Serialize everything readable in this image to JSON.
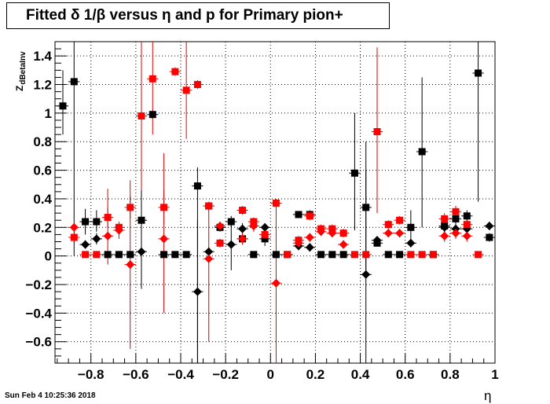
{
  "title": "Fitted δ 1/β versus η and p for Primary pion+",
  "timestamp": "Sun Feb  4 10:25:36 2018",
  "colors": {
    "black_series": "#000000",
    "red_series": "#ff0000",
    "red_error": "#e00000",
    "grid": "#000000"
  },
  "chart_data": {
    "type": "scatter",
    "xlabel": "η",
    "ylabel_main": "Z",
    "ylabel_sub": "dBetaInv",
    "xlim": [
      -0.96,
      1.0
    ],
    "ylim": [
      -0.75,
      1.5
    ],
    "xticks": [
      -0.8,
      -0.6,
      -0.4,
      -0.2,
      0,
      0.2,
      0.4,
      0.6,
      0.8,
      1
    ],
    "xtick_labels": [
      "−0.8",
      "−0.6",
      "−0.4",
      "−0.2",
      "0",
      "0.2",
      "0.4",
      "0.6",
      "0.8",
      "1"
    ],
    "yticks": [
      -0.6,
      -0.4,
      -0.2,
      0,
      0.2,
      0.4,
      0.6,
      0.8,
      1,
      1.2,
      1.4
    ],
    "ytick_labels": [
      "−0.6",
      "−0.4",
      "−0.2",
      "0",
      "0.2",
      "0.4",
      "0.6",
      "0.8",
      "1",
      "1.2",
      "1.4"
    ],
    "grid": true,
    "series": [
      {
        "marker": "square",
        "color": "#000000",
        "points": [
          {
            "x": -0.925,
            "y": 1.05,
            "lo": 0.85,
            "hi": 1.3
          },
          {
            "x": -0.875,
            "y": 1.22,
            "lo": 0.0,
            "hi": 1.5
          },
          {
            "x": -0.825,
            "y": 0.24,
            "lo": 0.15,
            "hi": 0.33
          },
          {
            "x": -0.775,
            "y": 0.24,
            "lo": 0.17,
            "hi": 0.32
          },
          {
            "x": -0.725,
            "y": 0.01,
            "lo": -0.01,
            "hi": 0.03
          },
          {
            "x": -0.675,
            "y": 0.01,
            "lo": -0.01,
            "hi": 0.03
          },
          {
            "x": -0.625,
            "y": 0.01,
            "lo": -0.01,
            "hi": 0.03
          },
          {
            "x": -0.575,
            "y": 0.25,
            "lo": 0.0,
            "hi": 0.5
          },
          {
            "x": -0.525,
            "y": 0.99,
            "lo": 0.96,
            "hi": 1.02
          },
          {
            "x": -0.475,
            "y": 0.01,
            "lo": -0.01,
            "hi": 0.03
          },
          {
            "x": -0.425,
            "y": 0.01,
            "lo": -0.01,
            "hi": 0.03
          },
          {
            "x": -0.375,
            "y": 0.01,
            "lo": -0.01,
            "hi": 0.03
          },
          {
            "x": -0.325,
            "y": 0.49,
            "lo": -0.75,
            "hi": 0.62
          },
          {
            "x": -0.275,
            "y": 0.35,
            "lo": 0.33,
            "hi": 0.37
          },
          {
            "x": -0.225,
            "y": 0.2,
            "lo": 0.17,
            "hi": 0.23
          },
          {
            "x": -0.175,
            "y": 0.24,
            "lo": 0.2,
            "hi": 0.28
          },
          {
            "x": -0.125,
            "y": 0.12,
            "lo": 0.08,
            "hi": 0.16
          },
          {
            "x": -0.075,
            "y": 0.01,
            "lo": -0.01,
            "hi": 0.03
          },
          {
            "x": -0.025,
            "y": 0.12,
            "lo": 0.07,
            "hi": 0.17
          },
          {
            "x": 0.025,
            "y": 0.01,
            "lo": -0.01,
            "hi": 0.03
          },
          {
            "x": 0.075,
            "y": 0.01,
            "lo": -0.01,
            "hi": 0.03
          },
          {
            "x": 0.125,
            "y": 0.29,
            "lo": 0.27,
            "hi": 0.31
          },
          {
            "x": 0.175,
            "y": 0.29,
            "lo": 0.26,
            "hi": 0.32
          },
          {
            "x": 0.225,
            "y": 0.01,
            "lo": -0.01,
            "hi": 0.03
          },
          {
            "x": 0.275,
            "y": 0.01,
            "lo": -0.01,
            "hi": 0.03
          },
          {
            "x": 0.325,
            "y": 0.01,
            "lo": -0.01,
            "hi": 0.03
          },
          {
            "x": 0.375,
            "y": 0.58,
            "lo": 0.18,
            "hi": 1.0
          },
          {
            "x": 0.425,
            "y": 0.34,
            "lo": -0.1,
            "hi": 0.8
          },
          {
            "x": 0.475,
            "y": 0.09,
            "lo": 0.07,
            "hi": 0.11
          },
          {
            "x": 0.525,
            "y": 0.01,
            "lo": -0.01,
            "hi": 0.03
          },
          {
            "x": 0.575,
            "y": 0.01,
            "lo": -0.01,
            "hi": 0.03
          },
          {
            "x": 0.625,
            "y": 0.2,
            "lo": 0.08,
            "hi": 0.32
          },
          {
            "x": 0.675,
            "y": 0.73,
            "lo": 0.2,
            "hi": 1.25
          },
          {
            "x": 0.725,
            "y": 0.01,
            "lo": -0.01,
            "hi": 0.03
          },
          {
            "x": 0.775,
            "y": 0.21,
            "lo": 0.16,
            "hi": 0.26
          },
          {
            "x": 0.825,
            "y": 0.26,
            "lo": 0.21,
            "hi": 0.31
          },
          {
            "x": 0.875,
            "y": 0.28,
            "lo": 0.24,
            "hi": 0.32
          },
          {
            "x": 0.925,
            "y": 1.28,
            "lo": 0.38,
            "hi": 1.5
          },
          {
            "x": 0.975,
            "y": 0.13,
            "lo": 0.1,
            "hi": 0.16
          }
        ]
      },
      {
        "marker": "diamond",
        "color": "#000000",
        "points": [
          {
            "x": -0.825,
            "y": 0.08,
            "lo": 0.05,
            "hi": 0.11
          },
          {
            "x": -0.775,
            "y": 0.12,
            "lo": 0.08,
            "hi": 0.16
          },
          {
            "x": -0.575,
            "y": 0.03,
            "lo": -0.23,
            "hi": 0.29
          },
          {
            "x": -0.325,
            "y": -0.25,
            "lo": -0.75,
            "hi": 0.25
          },
          {
            "x": -0.275,
            "y": 0.03,
            "lo": 0.0,
            "hi": 0.06
          },
          {
            "x": -0.175,
            "y": 0.08,
            "lo": -0.1,
            "hi": 0.26
          },
          {
            "x": -0.125,
            "y": 0.19,
            "lo": 0.15,
            "hi": 0.23
          },
          {
            "x": -0.025,
            "y": 0.2,
            "lo": 0.17,
            "hi": 0.23
          },
          {
            "x": 0.125,
            "y": 0.07,
            "lo": 0.04,
            "hi": 0.1
          },
          {
            "x": 0.175,
            "y": 0.06,
            "lo": 0.03,
            "hi": 0.09
          },
          {
            "x": 0.425,
            "y": -0.13,
            "lo": -0.75,
            "hi": 0.6
          },
          {
            "x": 0.475,
            "y": 0.11,
            "lo": 0.08,
            "hi": 0.14
          },
          {
            "x": 0.625,
            "y": 0.09,
            "lo": 0.06,
            "hi": 0.12
          },
          {
            "x": 0.775,
            "y": 0.2,
            "lo": 0.16,
            "hi": 0.24
          },
          {
            "x": 0.825,
            "y": 0.19,
            "lo": 0.15,
            "hi": 0.23
          },
          {
            "x": 0.875,
            "y": 0.19,
            "lo": 0.15,
            "hi": 0.23
          },
          {
            "x": 0.975,
            "y": 0.21,
            "lo": 0.18,
            "hi": 0.24
          }
        ]
      },
      {
        "marker": "square",
        "color": "#ff0000",
        "points": [
          {
            "x": -0.875,
            "y": 0.13,
            "lo": 0.1,
            "hi": 0.16
          },
          {
            "x": -0.825,
            "y": 0.01,
            "lo": -0.01,
            "hi": 0.03
          },
          {
            "x": -0.775,
            "y": 0.01,
            "lo": -0.01,
            "hi": 0.03
          },
          {
            "x": -0.725,
            "y": 0.27,
            "lo": 0.2,
            "hi": 0.34
          },
          {
            "x": -0.675,
            "y": 0.2,
            "lo": 0.17,
            "hi": 0.23
          },
          {
            "x": -0.625,
            "y": 0.34,
            "lo": 0.26,
            "hi": 0.42
          },
          {
            "x": -0.575,
            "y": 0.98,
            "lo": 0.46,
            "hi": 1.5
          },
          {
            "x": -0.525,
            "y": 1.24,
            "lo": 0.85,
            "hi": 1.5
          },
          {
            "x": -0.475,
            "y": 0.34,
            "lo": 0.22,
            "hi": 0.46
          },
          {
            "x": -0.425,
            "y": 1.29,
            "lo": 1.26,
            "hi": 1.32
          },
          {
            "x": -0.375,
            "y": 1.16,
            "lo": 0.82,
            "hi": 1.5
          },
          {
            "x": -0.325,
            "y": 1.2,
            "lo": 1.17,
            "hi": 1.23
          },
          {
            "x": -0.275,
            "y": 0.35,
            "lo": 0.32,
            "hi": 0.38
          },
          {
            "x": -0.225,
            "y": 0.09,
            "lo": 0.06,
            "hi": 0.12
          },
          {
            "x": -0.125,
            "y": 0.32,
            "lo": 0.29,
            "hi": 0.35
          },
          {
            "x": -0.075,
            "y": 0.24,
            "lo": 0.21,
            "hi": 0.27
          },
          {
            "x": -0.025,
            "y": 0.15,
            "lo": 0.12,
            "hi": 0.18
          },
          {
            "x": 0.025,
            "y": 0.37,
            "lo": 0.34,
            "hi": 0.4
          },
          {
            "x": 0.075,
            "y": 0.01,
            "lo": -0.01,
            "hi": 0.03
          },
          {
            "x": 0.125,
            "y": 0.11,
            "lo": 0.08,
            "hi": 0.14
          },
          {
            "x": 0.175,
            "y": 0.28,
            "lo": 0.25,
            "hi": 0.31
          },
          {
            "x": 0.225,
            "y": 0.19,
            "lo": 0.16,
            "hi": 0.22
          },
          {
            "x": 0.275,
            "y": 0.19,
            "lo": 0.16,
            "hi": 0.22
          },
          {
            "x": 0.325,
            "y": 0.16,
            "lo": 0.13,
            "hi": 0.19
          },
          {
            "x": 0.375,
            "y": 0.01,
            "lo": -0.01,
            "hi": 0.03
          },
          {
            "x": 0.425,
            "y": 0.01,
            "lo": -0.01,
            "hi": 0.03
          },
          {
            "x": 0.475,
            "y": 0.87,
            "lo": 0.3,
            "hi": 1.46
          },
          {
            "x": 0.525,
            "y": 0.22,
            "lo": 0.19,
            "hi": 0.25
          },
          {
            "x": 0.575,
            "y": 0.25,
            "lo": 0.22,
            "hi": 0.28
          },
          {
            "x": 0.625,
            "y": 0.01,
            "lo": -0.01,
            "hi": 0.03
          },
          {
            "x": 0.675,
            "y": 0.01,
            "lo": -0.01,
            "hi": 0.03
          },
          {
            "x": 0.725,
            "y": 0.01,
            "lo": -0.01,
            "hi": 0.03
          },
          {
            "x": 0.775,
            "y": 0.26,
            "lo": 0.22,
            "hi": 0.3
          },
          {
            "x": 0.825,
            "y": 0.31,
            "lo": 0.27,
            "hi": 0.35
          },
          {
            "x": 0.875,
            "y": 0.22,
            "lo": 0.19,
            "hi": 0.25
          },
          {
            "x": 0.925,
            "y": 0.01,
            "lo": -0.01,
            "hi": 0.03
          }
        ]
      },
      {
        "marker": "diamond",
        "color": "#ff0000",
        "points": [
          {
            "x": -0.875,
            "y": 0.2,
            "lo": 0.17,
            "hi": 0.23
          },
          {
            "x": -0.725,
            "y": 0.14,
            "lo": -0.06,
            "hi": 0.47
          },
          {
            "x": -0.675,
            "y": 0.18,
            "lo": 0.12,
            "hi": 0.24
          },
          {
            "x": -0.625,
            "y": -0.06,
            "lo": -0.65,
            "hi": 0.53
          },
          {
            "x": -0.475,
            "y": 0.12,
            "lo": -0.4,
            "hi": 0.72
          },
          {
            "x": -0.275,
            "y": -0.02,
            "lo": -0.6,
            "hi": 0.35
          },
          {
            "x": -0.225,
            "y": 0.21,
            "lo": 0.18,
            "hi": 0.24
          },
          {
            "x": -0.125,
            "y": 0.12,
            "lo": 0.08,
            "hi": 0.16
          },
          {
            "x": -0.075,
            "y": 0.21,
            "lo": 0.17,
            "hi": 0.25
          },
          {
            "x": 0.025,
            "y": -0.19,
            "lo": -0.75,
            "hi": 0.4
          },
          {
            "x": 0.125,
            "y": 0.09,
            "lo": 0.06,
            "hi": 0.12
          },
          {
            "x": 0.175,
            "y": 0.13,
            "lo": 0.1,
            "hi": 0.16
          },
          {
            "x": 0.225,
            "y": 0.17,
            "lo": 0.14,
            "hi": 0.2
          },
          {
            "x": 0.275,
            "y": 0.16,
            "lo": 0.13,
            "hi": 0.19
          },
          {
            "x": 0.325,
            "y": 0.08,
            "lo": 0.05,
            "hi": 0.11
          },
          {
            "x": 0.525,
            "y": 0.16,
            "lo": 0.13,
            "hi": 0.19
          },
          {
            "x": 0.575,
            "y": 0.16,
            "lo": 0.13,
            "hi": 0.19
          },
          {
            "x": 0.775,
            "y": 0.14,
            "lo": 0.1,
            "hi": 0.18
          },
          {
            "x": 0.825,
            "y": 0.16,
            "lo": 0.12,
            "hi": 0.2
          },
          {
            "x": 0.875,
            "y": 0.14,
            "lo": 0.1,
            "hi": 0.18
          }
        ]
      }
    ]
  }
}
